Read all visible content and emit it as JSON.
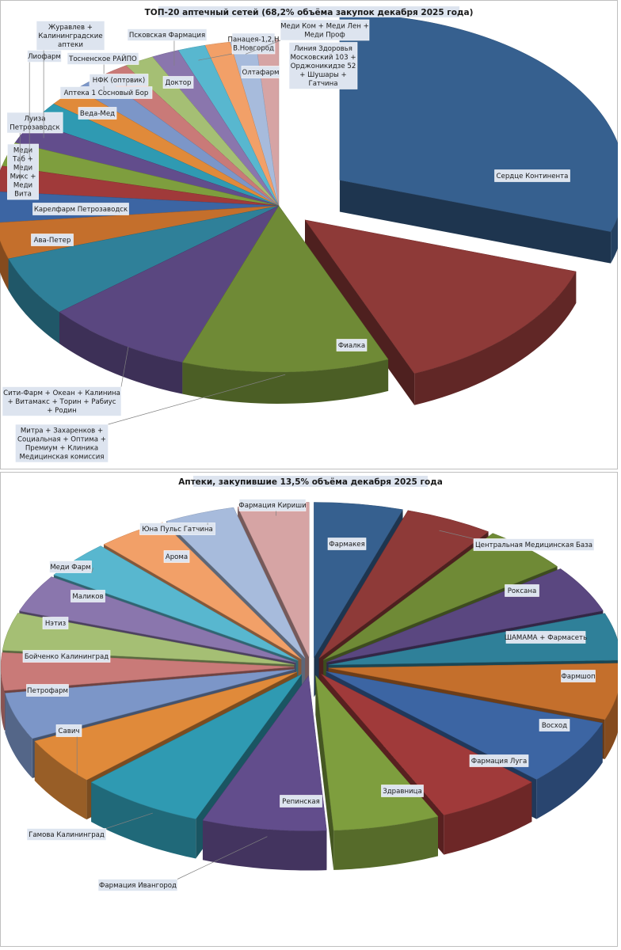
{
  "chart_data": [
    {
      "type": "pie",
      "title": "ТОП-20 аптечный сетей (68,2% объёма закупок декабря 2025 года)",
      "slices": [
        {
          "label": "Сердце Континента",
          "value": 23.0,
          "color": "#36608f"
        },
        {
          "label": "Фиалка",
          "value": 10.5,
          "color": "#8e3a38"
        },
        {
          "label": "Митра + Захаренков + Социальная + Оптима + Премиум + Клиника Медицинская комиссия",
          "value": 9.0,
          "color": "#6f8a36"
        },
        {
          "label": "Сити-Фарм + Океан + Калинина + Витамакс + Торин + Рабиус + Родин",
          "value": 6.5,
          "color": "#5a4780"
        },
        {
          "label": "Ава-Петер",
          "value": 4.5,
          "color": "#2f8099"
        },
        {
          "label": "Карелфарм Петрозаводск",
          "value": 2.7,
          "color": "#c46f2c"
        },
        {
          "label": "Меди Таб + Меди Микс + Меди Вита",
          "value": 2.3,
          "color": "#3c65a3"
        },
        {
          "label": "Луиза Петрозаводск",
          "value": 1.9,
          "color": "#a03a3a"
        },
        {
          "label": "Лиофарм",
          "value": 1.8,
          "color": "#7e9e3e"
        },
        {
          "label": "Журавлев + Калининградские аптеки",
          "value": 1.7,
          "color": "#624d8c"
        },
        {
          "label": "Веда-Мед",
          "value": 1.6,
          "color": "#2f9ab2"
        },
        {
          "label": "Аптека 1 Сосновый Бор",
          "value": 1.5,
          "color": "#e08a3a"
        },
        {
          "label": "Тосненское РАЙПО",
          "value": 1.4,
          "color": "#7c96c8"
        },
        {
          "label": "НФК (оптовик)",
          "value": 1.3,
          "color": "#c97a78"
        },
        {
          "label": "Доктор",
          "value": 1.3,
          "color": "#a5bf74"
        },
        {
          "label": "Псковская Фармация",
          "value": 1.2,
          "color": "#8a76ad"
        },
        {
          "label": "Панацея-1,2,Н В.Новгород",
          "value": 1.2,
          "color": "#58b7cf"
        },
        {
          "label": "Олтафарм",
          "value": 1.1,
          "color": "#f2a068"
        },
        {
          "label": "Меди Ком + Меди Лен + Меди Проф",
          "value": 1.1,
          "color": "#a7bbdc"
        },
        {
          "label": "Линия Здоровья Московский 103 + Орджоникидзе 52 + Шушары + Гатчина",
          "value": 1.0,
          "color": "#d6a4a4"
        }
      ]
    },
    {
      "type": "pie",
      "title": "Аптеки, закупившие 13,5% объёма декабря 2025 года",
      "slices": [
        {
          "label": "Фармакея",
          "value": 5.0,
          "color": "#36608f"
        },
        {
          "label": "Центральная Медицинская База",
          "value": 5.0,
          "color": "#8e3a38"
        },
        {
          "label": "Роксана",
          "value": 5.0,
          "color": "#6f8a36"
        },
        {
          "label": "ШАМАМА + Фармасеть",
          "value": 5.0,
          "color": "#5a4780"
        },
        {
          "label": "Фармшоп",
          "value": 5.0,
          "color": "#2f8099"
        },
        {
          "label": "Восход",
          "value": 6.0,
          "color": "#c46f2c"
        },
        {
          "label": "Фармация Луга",
          "value": 7.0,
          "color": "#3c65a3"
        },
        {
          "label": "Здравница",
          "value": 6.0,
          "color": "#a03a3a"
        },
        {
          "label": "Репинская",
          "value": 6.0,
          "color": "#7e9e3e"
        },
        {
          "label": "Фармация Ивангород",
          "value": 7.0,
          "color": "#624d8c"
        },
        {
          "label": "Гамова Калининград",
          "value": 7.0,
          "color": "#2f9ab2"
        },
        {
          "label": "Савич",
          "value": 5.0,
          "color": "#e08a3a"
        },
        {
          "label": "Петрофарм",
          "value": 5.0,
          "color": "#7c96c8"
        },
        {
          "label": "Бойченко Калининград",
          "value": 4.0,
          "color": "#c97a78"
        },
        {
          "label": "Нэтиз",
          "value": 4.0,
          "color": "#a5bf74"
        },
        {
          "label": "Маликов",
          "value": 4.0,
          "color": "#8a76ad"
        },
        {
          "label": "Меди Фарм",
          "value": 4.0,
          "color": "#58b7cf"
        },
        {
          "label": "Арома",
          "value": 4.0,
          "color": "#f2a068"
        },
        {
          "label": "Юна Пульс Гатчина",
          "value": 4.0,
          "color": "#a7bbdc"
        },
        {
          "label": "Фармация Кириши",
          "value": 4.0,
          "color": "#d6a4a4"
        }
      ]
    }
  ]
}
